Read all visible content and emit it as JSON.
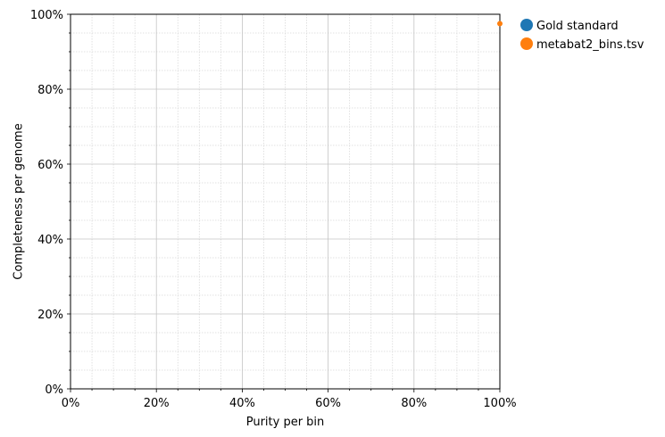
{
  "chart_data": {
    "type": "scatter",
    "xlabel": "Purity per bin",
    "ylabel": "Completeness per genome",
    "xlim": [
      0,
      1
    ],
    "ylim": [
      0,
      1
    ],
    "x_tick_format": "percent",
    "y_tick_format": "percent",
    "x_ticks": [
      "0%",
      "20%",
      "40%",
      "60%",
      "80%",
      "100%"
    ],
    "y_ticks": [
      "0%",
      "20%",
      "40%",
      "60%",
      "80%",
      "100%"
    ],
    "grid": {
      "major": true,
      "minor": true
    },
    "legend_position": "outside-top-right",
    "series": [
      {
        "name": "Gold standard",
        "color": "#1f77b4",
        "points": []
      },
      {
        "name": "metabat2_bins.tsv",
        "color": "#ff7f0e",
        "points": [
          {
            "x": 1.0,
            "y": 0.975
          }
        ]
      }
    ]
  }
}
